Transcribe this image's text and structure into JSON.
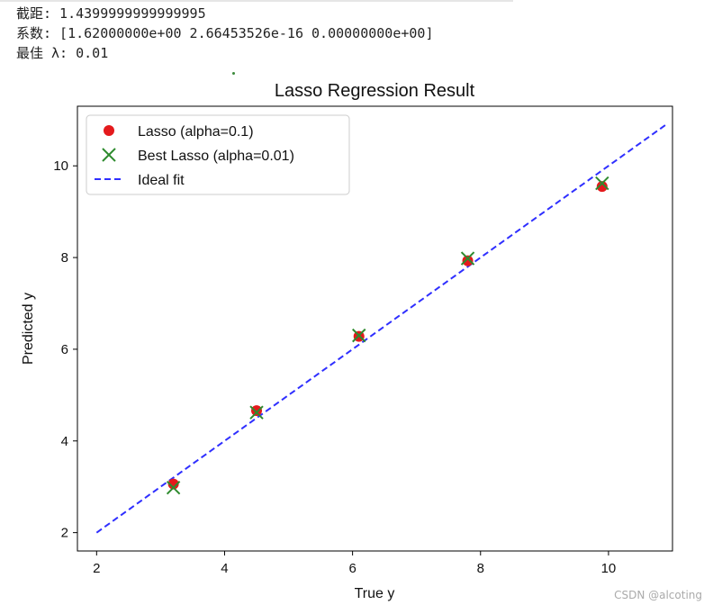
{
  "console": {
    "intercept_line": "截距: 1.4399999999999995",
    "coef_line": "系数: [1.62000000e+00 2.66453526e-16 0.00000000e+00]",
    "lambda_line": "最佳 λ: 0.01"
  },
  "watermark": "CSDN @alcoting",
  "chart_data": {
    "type": "scatter",
    "title": "Lasso Regression Result",
    "xlabel": "True y",
    "ylabel": "Predicted y",
    "xlim": [
      1.7,
      11.0
    ],
    "ylim": [
      1.6,
      11.3
    ],
    "xticks": [
      2,
      4,
      6,
      8,
      10
    ],
    "yticks": [
      2,
      4,
      6,
      8,
      10
    ],
    "grid": false,
    "legend_position": "upper-left",
    "series": [
      {
        "name": "Lasso (alpha=0.1)",
        "marker": "circle",
        "color": "#e41a1c",
        "x": [
          3.2,
          4.5,
          6.1,
          7.8,
          9.9
        ],
        "y": [
          3.06,
          4.66,
          6.28,
          7.93,
          9.55
        ]
      },
      {
        "name": "Best Lasso (alpha=0.01)",
        "marker": "x",
        "color": "#2e8b2e",
        "x": [
          3.2,
          4.5,
          6.1,
          7.8,
          9.9
        ],
        "y": [
          2.98,
          4.62,
          6.3,
          7.98,
          9.62
        ]
      },
      {
        "name": "Ideal fit",
        "marker": "dashed-line",
        "color": "#2f2fff",
        "x": [
          2,
          10.9
        ],
        "y": [
          2,
          10.9
        ]
      }
    ]
  }
}
